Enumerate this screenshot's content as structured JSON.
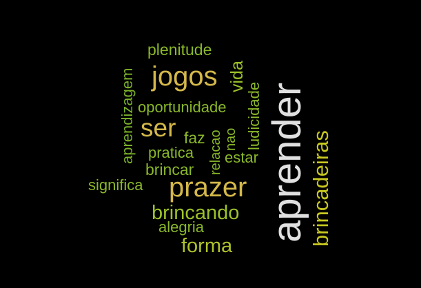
{
  "words": [
    {
      "text": "aprender",
      "color": "#e0e0e0"
    },
    {
      "text": "prazer",
      "color": "#d4b84a"
    },
    {
      "text": "jogos",
      "color": "#d4b84a"
    },
    {
      "text": "ser",
      "color": "#d4b84a"
    },
    {
      "text": "brincadeiras",
      "color": "#c8c820"
    },
    {
      "text": "brincando",
      "color": "#9cc22a"
    },
    {
      "text": "forma",
      "color": "#b0c22a"
    },
    {
      "text": "vida",
      "color": "#9cc22a"
    },
    {
      "text": "oportunidade",
      "color": "#8ab82a"
    },
    {
      "text": "plenitude",
      "color": "#8ab82a"
    },
    {
      "text": "aprendizagem",
      "color": "#7ab02a"
    },
    {
      "text": "ludicidade",
      "color": "#8ab82a"
    },
    {
      "text": "faz",
      "color": "#8ab82a"
    },
    {
      "text": "pratica",
      "color": "#8ab82a"
    },
    {
      "text": "brincar",
      "color": "#8ab82a"
    },
    {
      "text": "relacao",
      "color": "#8ab82a"
    },
    {
      "text": "nao",
      "color": "#8ab82a"
    },
    {
      "text": "estar",
      "color": "#8ab82a"
    },
    {
      "text": "significa",
      "color": "#8ab82a"
    },
    {
      "text": "alegria",
      "color": "#8ab82a"
    }
  ]
}
